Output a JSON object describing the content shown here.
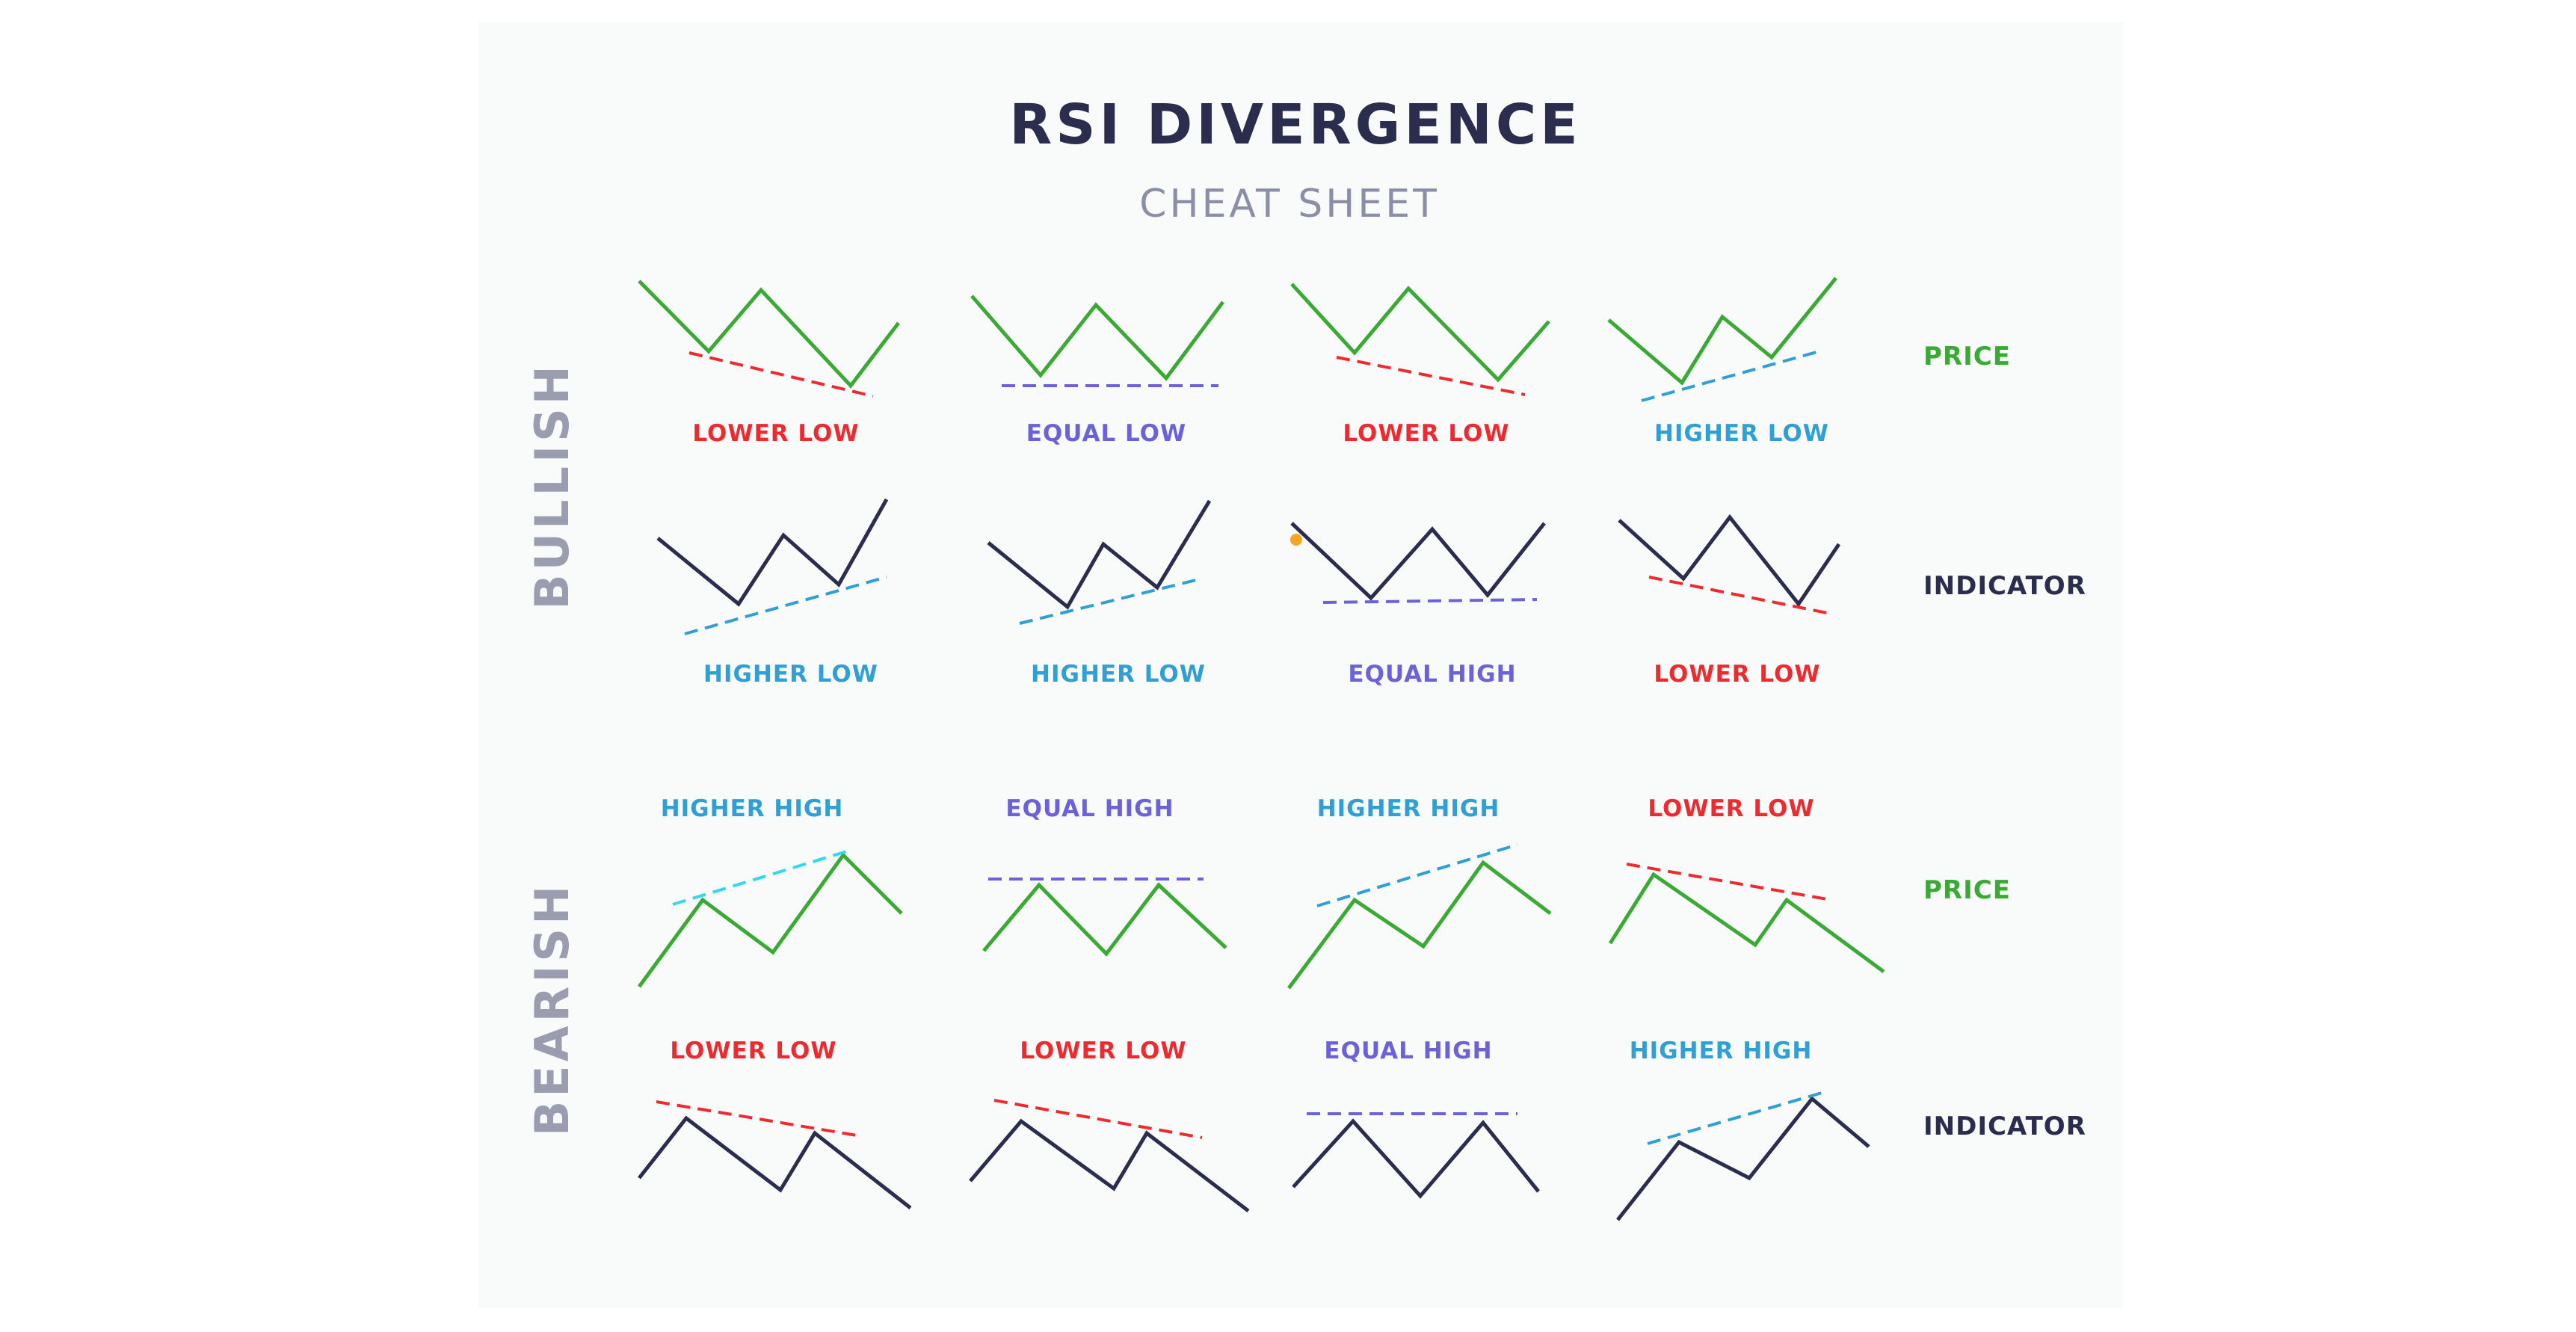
{
  "title": "RSI DIVERGENCE",
  "subtitle": "CHEAT SHEET",
  "colors": {
    "title": "#2b2d4e",
    "subtitle": "#8a8ea6",
    "section": "#9a9db0",
    "price_line": "#3aaa35",
    "indicator_line": "#2b2d4e",
    "red": "#ee2a2f",
    "purple": "#6b62d9",
    "blue": "#2f9fd6"
  },
  "sections": {
    "bullish": "BULLISH",
    "bearish": "BEARISH"
  },
  "row_labels": {
    "price": "PRICE",
    "indicator": "INDICATOR"
  },
  "bullish": {
    "price": [
      {
        "label": "LOWER LOW",
        "color": "red"
      },
      {
        "label": "EQUAL LOW",
        "color": "purple"
      },
      {
        "label": "LOWER LOW",
        "color": "red"
      },
      {
        "label": "HIGHER LOW",
        "color": "blue"
      }
    ],
    "indicator": [
      {
        "label": "HIGHER LOW",
        "color": "blue"
      },
      {
        "label": "HIGHER LOW",
        "color": "blue"
      },
      {
        "label": "EQUAL HIGH",
        "color": "purple"
      },
      {
        "label": "LOWER LOW",
        "color": "red"
      }
    ]
  },
  "bearish": {
    "price": [
      {
        "label": "HIGHER HIGH",
        "color": "blue"
      },
      {
        "label": "EQUAL HIGH",
        "color": "purple"
      },
      {
        "label": "HIGHER HIGH",
        "color": "blue"
      },
      {
        "label": "LOWER LOW",
        "color": "red"
      }
    ],
    "indicator": [
      {
        "label": "LOWER LOW",
        "color": "red"
      },
      {
        "label": "LOWER LOW",
        "color": "red"
      },
      {
        "label": "EQUAL HIGH",
        "color": "purple"
      },
      {
        "label": "HIGHER HIGH",
        "color": "blue"
      }
    ]
  }
}
